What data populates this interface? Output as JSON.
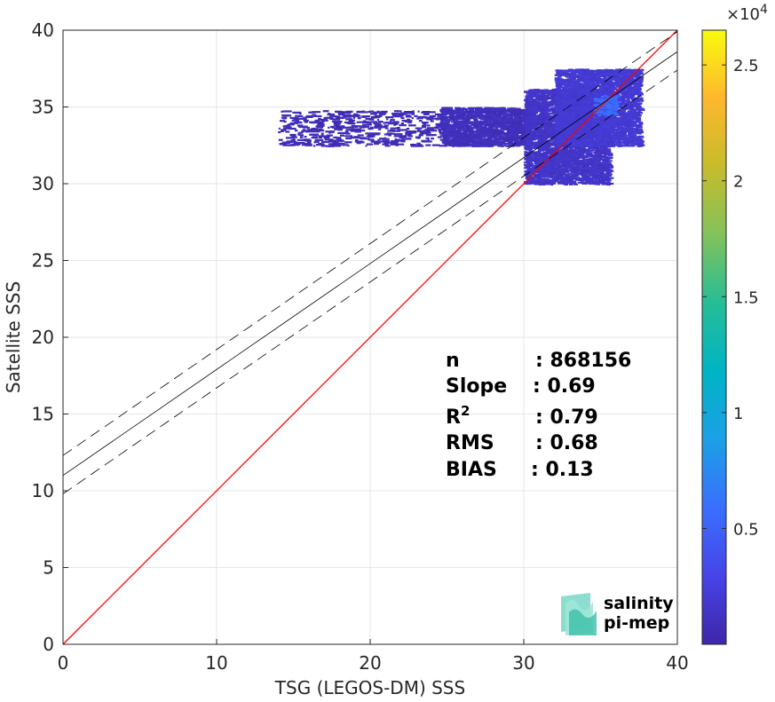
{
  "chart_data": {
    "type": "heatmap",
    "title": "",
    "xlabel": "TSG (LEGOS-DM) SSS",
    "ylabel": "Satellite SSS",
    "xlim": [
      0,
      40
    ],
    "ylim": [
      0,
      40
    ],
    "xticks": [
      "0",
      "10",
      "20",
      "30",
      "40"
    ],
    "yticks": [
      "0",
      "5",
      "10",
      "15",
      "20",
      "25",
      "30",
      "35",
      "40"
    ],
    "grid": true,
    "colorbar": {
      "multiplier": "×10",
      "exponent": "4",
      "range": [
        0,
        26500
      ],
      "ticks": [
        {
          "value": 5000,
          "label": "0.5"
        },
        {
          "value": 10000,
          "label": "1"
        },
        {
          "value": 15000,
          "label": "1.5"
        },
        {
          "value": 20000,
          "label": "2"
        },
        {
          "value": 25000,
          "label": "2.5"
        }
      ],
      "colormap": [
        "#3e26a8",
        "#4744e8",
        "#3a6ffe",
        "#1ca0e6",
        "#00b4c5",
        "#26bd96",
        "#82c25c",
        "#c7bc2b",
        "#feb72e",
        "#f9fb0e"
      ]
    },
    "identity_line": {
      "from": [
        0,
        0
      ],
      "to": [
        40,
        40
      ],
      "color": "#ff0000"
    },
    "fit_line": {
      "slope": 0.69,
      "intercept": 11.0,
      "color": "#000000"
    },
    "fit_bounds": {
      "upper_intercept": 12.3,
      "lower_intercept": 9.8,
      "style": "dashed"
    },
    "density_clusters": [
      {
        "x": [
          24.5,
          30.5
        ],
        "y": [
          32.5,
          35.0
        ],
        "level": 0.02
      },
      {
        "x": [
          14,
          24.5
        ],
        "y": [
          32.5,
          34.8
        ],
        "level": 0.01
      },
      {
        "x": [
          30,
          35.5
        ],
        "y": [
          30.0,
          36.2
        ],
        "level": 0.04
      },
      {
        "x": [
          32,
          37.5
        ],
        "y": [
          32.5,
          37.5
        ],
        "level": 0.06
      },
      {
        "x": [
          34.5,
          36
        ],
        "y": [
          34.5,
          35.8
        ],
        "level": 0.2
      }
    ],
    "stats": [
      {
        "label": "n",
        "value": ": 868156"
      },
      {
        "label": "Slope",
        "value": ": 0.69"
      },
      {
        "label": "R",
        "sup": "2",
        "value": ": 0.79"
      },
      {
        "label": "RMS",
        "value": ": 0.68"
      },
      {
        "label": "BIAS",
        "value": ": 0.13"
      }
    ]
  },
  "logo": {
    "line1": "salinity",
    "line2": "pi-mep",
    "color1": "#22a99a",
    "color2": "#1c6b6b"
  }
}
